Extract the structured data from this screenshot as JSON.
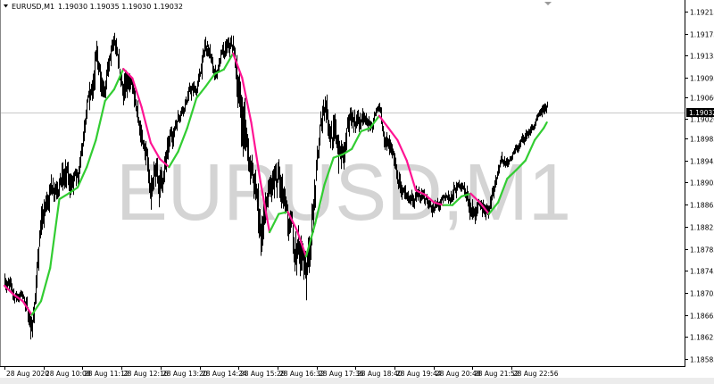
{
  "header": {
    "symbol": "EURUSD,M1",
    "ohlc": "1.19030 1.19035 1.19030 1.19032"
  },
  "watermark": "EURUSD,M1",
  "colors": {
    "bars": "#000000",
    "ma_up": "#32cd32",
    "ma_down": "#ff1493",
    "watermark": "#d4d4d4",
    "price_line": "#c8c8c8",
    "current_price_bg": "#000000"
  },
  "chart_data": {
    "type": "bar",
    "subtype": "ohlc-minute-bars-with-moving-average",
    "symbol": "EURUSD",
    "timeframe": "M1",
    "date": "28 Aug 2020",
    "ylim": [
      1.18585,
      1.19235
    ],
    "grid": false,
    "current_price": "1.19032",
    "y_ticks": [
      "1.19215",
      "1.19175",
      "1.19135",
      "1.19095",
      "1.19060",
      "1.19020",
      "1.18985",
      "1.18945",
      "1.18905",
      "1.18865",
      "1.18825",
      "1.18785",
      "1.18745",
      "1.18705",
      "1.18665",
      "1.18625",
      "1.18585"
    ],
    "x_ticks": [
      {
        "time": "09:04",
        "label": "28 Aug 2020"
      },
      {
        "time": "10:08",
        "label": "28 Aug 10:08"
      },
      {
        "time": "11:12",
        "label": "28 Aug 11:12"
      },
      {
        "time": "12:16",
        "label": "28 Aug 12:16"
      },
      {
        "time": "13:20",
        "label": "28 Aug 13:20"
      },
      {
        "time": "14:24",
        "label": "28 Aug 14:24"
      },
      {
        "time": "15:28",
        "label": "28 Aug 15:28"
      },
      {
        "time": "16:32",
        "label": "28 Aug 16:32"
      },
      {
        "time": "17:36",
        "label": "28 Aug 17:36"
      },
      {
        "time": "18:40",
        "label": "28 Aug 18:40"
      },
      {
        "time": "19:44",
        "label": "28 Aug 19:44"
      },
      {
        "time": "20:48",
        "label": "28 Aug 20:48"
      },
      {
        "time": "21:52",
        "label": "28 Aug 21:52"
      },
      {
        "time": "22:56",
        "label": "28 Aug 22:56"
      }
    ],
    "times": [
      "09:04",
      "09:19",
      "09:34",
      "09:49",
      "10:04",
      "10:19",
      "10:34",
      "10:49",
      "11:04",
      "11:19",
      "11:34",
      "11:49",
      "12:04",
      "12:19",
      "12:34",
      "12:49",
      "13:04",
      "13:19",
      "13:34",
      "13:49",
      "14:04",
      "14:19",
      "14:34",
      "14:49",
      "15:04",
      "15:19",
      "15:34",
      "15:49",
      "16:04",
      "16:19",
      "16:34",
      "16:49",
      "17:04",
      "17:19",
      "17:34",
      "17:49",
      "18:04",
      "18:19",
      "18:34",
      "18:49",
      "19:04",
      "19:19",
      "19:34",
      "19:49",
      "20:04",
      "20:19",
      "20:34",
      "20:49",
      "21:04",
      "21:19",
      "21:34",
      "21:49",
      "22:04",
      "22:19",
      "22:34",
      "22:49",
      "23:04",
      "23:19",
      "23:34",
      "23:49",
      "23:54"
    ],
    "high": [
      1.18758,
      1.18718,
      1.18715,
      1.18678,
      1.18864,
      1.18928,
      1.18961,
      1.18941,
      1.18928,
      1.19055,
      1.19163,
      1.19126,
      1.19179,
      1.19123,
      1.1909,
      1.19018,
      1.18948,
      1.18953,
      1.18996,
      1.19058,
      1.1909,
      1.19094,
      1.19179,
      1.19123,
      1.19163,
      1.19175,
      1.19107,
      1.18977,
      1.18888,
      1.18916,
      1.18953,
      1.18856,
      1.18848,
      1.18807,
      1.18953,
      1.19103,
      1.19038,
      1.18993,
      1.19055,
      1.19042,
      1.19022,
      1.1905,
      1.18993,
      1.18937,
      1.18896,
      1.18904,
      1.18891,
      1.18877,
      1.18883,
      1.18904,
      1.18919,
      1.18893,
      1.18872,
      1.18893,
      1.18964,
      1.18961,
      1.18977,
      1.19006,
      1.19022,
      1.1905,
      1.1906
    ],
    "low": [
      1.1871,
      1.18678,
      1.18689,
      1.18605,
      1.18783,
      1.18864,
      1.1888,
      1.18864,
      1.18856,
      1.18993,
      1.19066,
      1.19058,
      1.19123,
      1.19034,
      1.19022,
      1.18953,
      1.18856,
      1.18848,
      1.18932,
      1.19009,
      1.19042,
      1.1905,
      1.1912,
      1.19082,
      1.19107,
      1.19115,
      1.18937,
      1.18896,
      1.18742,
      1.18839,
      1.18831,
      1.18767,
      1.18734,
      1.18686,
      1.18856,
      1.19018,
      1.18941,
      1.18896,
      1.1899,
      1.18993,
      1.18985,
      1.19013,
      1.18928,
      1.18877,
      1.18857,
      1.18856,
      1.18854,
      1.18839,
      1.18851,
      1.18856,
      1.1889,
      1.18831,
      1.18828,
      1.18839,
      1.1892,
      1.18932,
      1.18951,
      1.18974,
      1.18996,
      1.19018,
      1.1903
    ],
    "moving_average": [
      1.18718,
      1.18702,
      1.1869,
      1.18665,
      1.1869,
      1.1875,
      1.18875,
      1.18885,
      1.18896,
      1.18933,
      1.18982,
      1.19053,
      1.19074,
      1.19111,
      1.19094,
      1.19042,
      1.18977,
      1.18948,
      1.18933,
      1.18961,
      1.19004,
      1.19058,
      1.19079,
      1.19102,
      1.1911,
      1.19139,
      1.19095,
      1.19014,
      1.18907,
      1.18815,
      1.18848,
      1.18852,
      1.18818,
      1.18771,
      1.18831,
      1.18901,
      1.1895,
      1.18956,
      1.18966,
      1.18998,
      1.19004,
      1.19026,
      1.19004,
      1.18982,
      1.18945,
      1.18891,
      1.18883,
      1.18869,
      1.18864,
      1.18864,
      1.1888,
      1.18885,
      1.18869,
      1.18848,
      1.18869,
      1.18912,
      1.18928,
      1.18945,
      1.18982,
      1.19004,
      1.19014
    ]
  }
}
